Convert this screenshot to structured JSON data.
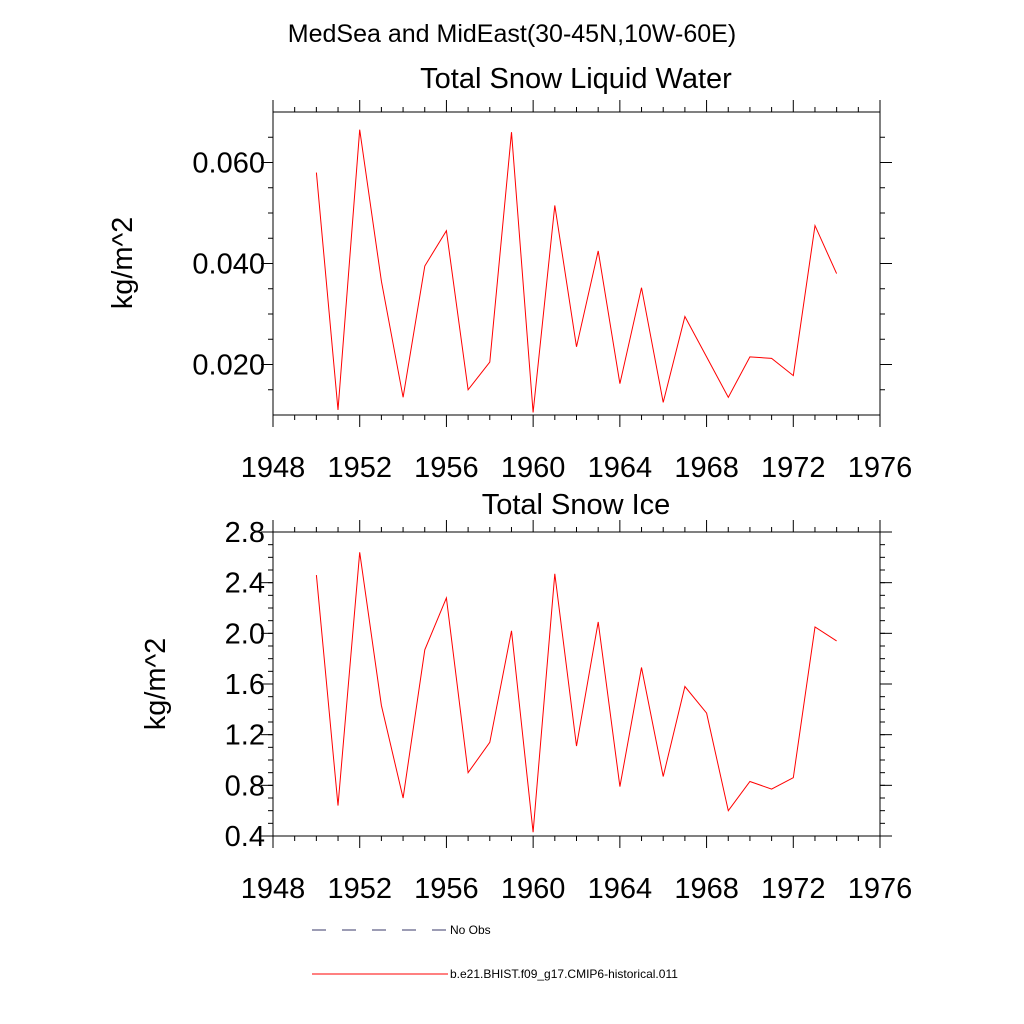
{
  "figure_title": "MedSea and MidEast(30-45N,10W-60E)",
  "colors": {
    "model_line": "#ff0000",
    "obs_line": "#3a3a6a"
  },
  "chart_data": [
    {
      "type": "line",
      "title": "Total Snow Liquid Water",
      "xlabel": "",
      "ylabel": "kg/m^2",
      "xlim": [
        1948,
        1976
      ],
      "ylim": [
        0.01,
        0.07
      ],
      "xticks": [
        1948,
        1952,
        1956,
        1960,
        1964,
        1968,
        1972,
        1976
      ],
      "xtick_labels": [
        "1948",
        "1952",
        "1956",
        "1960",
        "1964",
        "1968",
        "1972",
        "1976"
      ],
      "yticks": [
        0.02,
        0.04,
        0.06
      ],
      "ytick_labels": [
        "0.020",
        "0.040",
        "0.060"
      ],
      "x": [
        1950,
        1951,
        1952,
        1953,
        1954,
        1955,
        1956,
        1957,
        1958,
        1959,
        1960,
        1961,
        1962,
        1963,
        1964,
        1965,
        1966,
        1967,
        1968,
        1969,
        1970,
        1971,
        1972,
        1973,
        1974
      ],
      "series": [
        {
          "name": "b.e21.BHIST.f09_g17.CMIP6-historical.011",
          "values": [
            0.058,
            0.011,
            0.0665,
            0.0365,
            0.0135,
            0.0395,
            0.0465,
            0.015,
            0.0205,
            0.066,
            0.0105,
            0.0515,
            0.0235,
            0.0425,
            0.0162,
            0.0352,
            0.0125,
            0.0295,
            0.0215,
            0.0135,
            0.0215,
            0.0212,
            0.0178,
            0.0475,
            0.038
          ]
        }
      ],
      "grid": false
    },
    {
      "type": "line",
      "title": "Total Snow Ice",
      "xlabel": "",
      "ylabel": "kg/m^2",
      "xlim": [
        1948,
        1976
      ],
      "ylim": [
        0.4,
        2.8
      ],
      "xticks": [
        1948,
        1952,
        1956,
        1960,
        1964,
        1968,
        1972,
        1976
      ],
      "xtick_labels": [
        "1948",
        "1952",
        "1956",
        "1960",
        "1964",
        "1968",
        "1972",
        "1976"
      ],
      "yticks": [
        0.4,
        0.8,
        1.2,
        1.6,
        2.0,
        2.4,
        2.8
      ],
      "ytick_labels": [
        "0.4",
        "0.8",
        "1.2",
        "1.6",
        "2.0",
        "2.4",
        "2.8"
      ],
      "x": [
        1950,
        1951,
        1952,
        1953,
        1954,
        1955,
        1956,
        1957,
        1958,
        1959,
        1960,
        1961,
        1962,
        1963,
        1964,
        1965,
        1966,
        1967,
        1968,
        1969,
        1970,
        1971,
        1972,
        1973,
        1974
      ],
      "series": [
        {
          "name": "b.e21.BHIST.f09_g17.CMIP6-historical.011",
          "values": [
            2.46,
            0.64,
            2.64,
            1.43,
            0.7,
            1.87,
            2.28,
            0.9,
            1.14,
            2.02,
            0.43,
            2.47,
            1.11,
            2.09,
            0.79,
            1.73,
            0.87,
            1.58,
            1.37,
            0.6,
            0.83,
            0.77,
            0.86,
            2.05,
            1.94
          ]
        }
      ],
      "grid": false
    }
  ],
  "legend": {
    "placement": "bottom",
    "items": [
      {
        "label": "No Obs",
        "style": "dashed"
      },
      {
        "label": "b.e21.BHIST.f09_g17.CMIP6-historical.011",
        "style": "solid"
      }
    ]
  }
}
